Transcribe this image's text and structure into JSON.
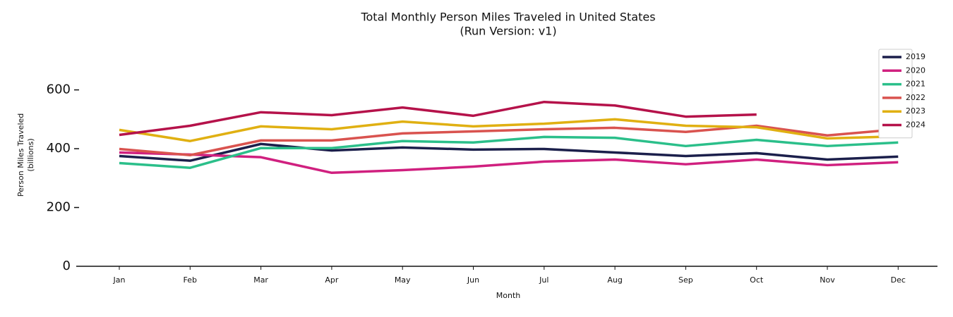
{
  "chart_data": {
    "type": "line",
    "title": "Total Monthly Person Miles Traveled in United States",
    "subtitle": "(Run Version: v1)",
    "xlabel": "Month",
    "ylabel": [
      "Person Miles Traveled",
      "(billions)"
    ],
    "categories": [
      "Jan",
      "Feb",
      "Mar",
      "Apr",
      "May",
      "Jun",
      "Jul",
      "Aug",
      "Sep",
      "Oct",
      "Nov",
      "Dec"
    ],
    "series": [
      {
        "name": "2019",
        "color": "#1b1f4b",
        "values": [
          375,
          359,
          416,
          394,
          404,
          397,
          399,
          387,
          375,
          385,
          363,
          373
        ]
      },
      {
        "name": "2020",
        "color": "#d0207f",
        "values": [
          387,
          380,
          371,
          318,
          327,
          339,
          356,
          363,
          347,
          363,
          344,
          354
        ]
      },
      {
        "name": "2021",
        "color": "#2bbf8a",
        "values": [
          351,
          335,
          402,
          402,
          426,
          421,
          440,
          437,
          409,
          430,
          409,
          421
        ]
      },
      {
        "name": "2022",
        "color": "#d9534f",
        "values": [
          399,
          378,
          428,
          428,
          452,
          459,
          466,
          471,
          457,
          478,
          445,
          466
        ]
      },
      {
        "name": "2023",
        "color": "#e0b012",
        "values": [
          464,
          426,
          476,
          466,
          492,
          476,
          485,
          500,
          478,
          473,
          435,
          442
        ]
      },
      {
        "name": "2024",
        "color": "#b5124a",
        "values": [
          447,
          478,
          524,
          514,
          540,
          512,
          559,
          547,
          509,
          516,
          null,
          null
        ]
      }
    ],
    "ylim": [
      0,
      750
    ],
    "yticks": [
      0,
      200,
      400,
      600
    ],
    "legend": "upper-right"
  }
}
